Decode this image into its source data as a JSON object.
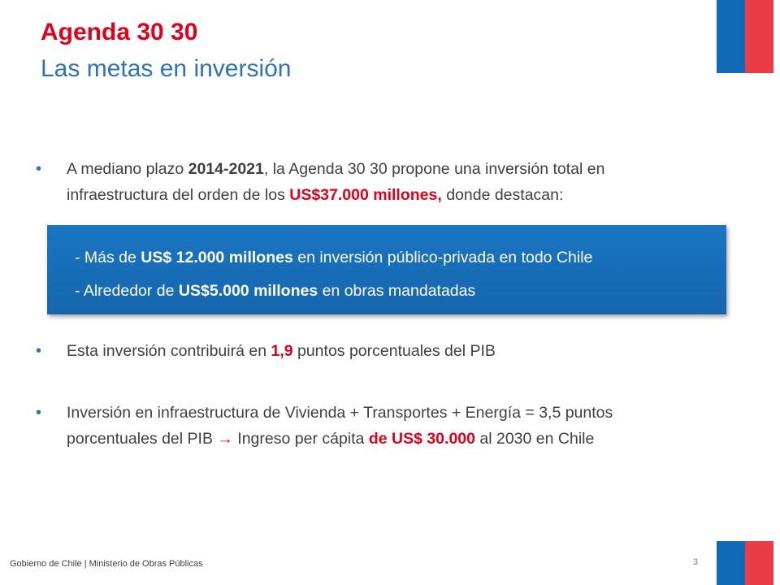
{
  "slide": {
    "title": "Agenda 30 30",
    "subtitle": "Las metas en inversión"
  },
  "bullets": [
    {
      "parts": [
        {
          "text": "A mediano plazo ",
          "style": "normal"
        },
        {
          "text": "2014-2021",
          "style": "bold"
        },
        {
          "text": ", la Agenda 30 30 propone una inversión total en infraestructura del orden de los ",
          "style": "normal"
        },
        {
          "text": "US$37.000 millones,",
          "style": "red-bold"
        },
        {
          "text": " donde destacan:",
          "style": "normal"
        }
      ]
    },
    {
      "parts": [
        {
          "text": "Esta inversión contribuirá en ",
          "style": "normal"
        },
        {
          "text": "1,9",
          "style": "red-bold"
        },
        {
          "text": " puntos porcentuales del PIB",
          "style": "normal"
        }
      ]
    },
    {
      "parts": [
        {
          "text": "Inversión en infraestructura de Vivienda + Transportes + Energía = 3,5 puntos porcentuales del PIB ",
          "style": "normal"
        },
        {
          "text": "→",
          "style": "red-bold"
        },
        {
          "text": " Ingreso per cápita ",
          "style": "normal"
        },
        {
          "text": "de US$ 30.000",
          "style": "red-bold"
        },
        {
          "text": " al 2030 en Chile",
          "style": "normal"
        }
      ]
    }
  ],
  "callout": {
    "line1": {
      "pre": "- Más de ",
      "bold": "US$ 12.000 millones",
      "post": " en inversión público-privada en todo Chile"
    },
    "line2": {
      "pre": "- Alrededor de ",
      "bold": "US$5.000 millones",
      "post": " en obras mandatadas"
    }
  },
  "footer": {
    "text": "Gobierno de Chile | Ministerio de Obras Públicas",
    "page_number": "3"
  },
  "colors": {
    "title_red": "#e3001b",
    "subtitle_blue": "#2e74b5",
    "callout_blue": "#1566ad",
    "flag_blue": "#0f69b4",
    "flag_red": "#eb3c46"
  }
}
